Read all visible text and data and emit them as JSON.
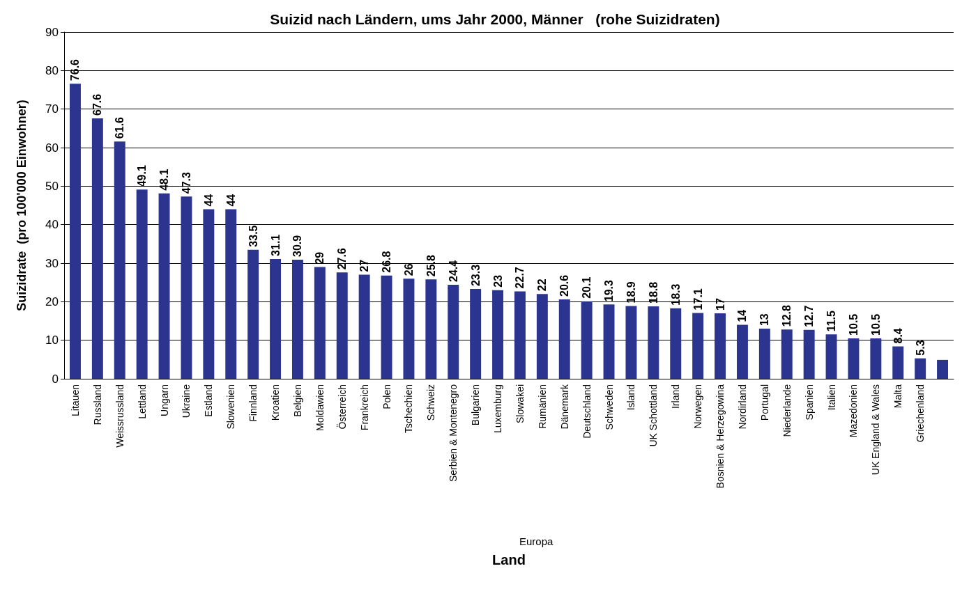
{
  "chart_data": {
    "type": "bar",
    "title": "Suizid nach Ländern, ums Jahr 2000, Männer   (rohe Suizidraten)",
    "xlabel": "Land",
    "ylabel": "Suizidrate  (pro 100'000 Einwohner)",
    "annotations": [
      "Europa"
    ],
    "categories": [
      "Litauen",
      "Russland",
      "Weissrussland",
      "Lettland",
      "Ungarn",
      "Ukraine",
      "Estland",
      "Slowenien",
      "Finnland",
      "Kroatien",
      "Belgien",
      "Moldawien",
      "Österreich",
      "Frankreich",
      "Polen",
      "Tschechien",
      "Schweiz",
      "Serbien & Montenegro",
      "Bulgarien",
      "Luxemburg",
      "Slowakei",
      "Rumänien",
      "Dänemark",
      "Deutschland",
      "Schweden",
      "Island",
      "UK Schottland",
      "Irland",
      "Norwegen",
      "Bosnien & Herzegowina",
      "Nordirland",
      "Portugal",
      "Niederlande",
      "Spanien",
      "Italien",
      "Mazedonien",
      "UK England & Wales",
      "Malta",
      "Griechenland",
      null
    ],
    "values": [
      76.6,
      67.6,
      61.6,
      49.1,
      48.1,
      47.3,
      44,
      44,
      33.5,
      31.1,
      30.9,
      29,
      27.6,
      27,
      26.8,
      26,
      25.8,
      24.4,
      23.3,
      23,
      22.7,
      22,
      20.6,
      20.1,
      19.3,
      18.9,
      18.8,
      18.3,
      17.1,
      17,
      14,
      13,
      12.8,
      12.7,
      11.5,
      10.5,
      10.5,
      8.4,
      5.3,
      4.9
    ],
    "value_labels": [
      "76.6",
      "67.6",
      "61.6",
      "49.1",
      "48.1",
      "47.3",
      "44",
      "44",
      "33.5",
      "31.1",
      "30.9",
      "29",
      "27.6",
      "27",
      "26.8",
      "26",
      "25.8",
      "24.4",
      "23.3",
      "23",
      "22.7",
      "22",
      "20.6",
      "20.1",
      "19.3",
      "18.9",
      "18.8",
      "18.3",
      "17.1",
      "17",
      "14",
      "13",
      "12.8",
      "12.7",
      "11.5",
      "10.5",
      "10.5",
      "8.4",
      "5.3",
      null
    ],
    "color": "#2b3590",
    "ylim": [
      0,
      90
    ],
    "yticks": [
      0,
      10,
      20,
      30,
      40,
      50,
      60,
      70,
      80,
      90
    ],
    "grid": "y"
  }
}
